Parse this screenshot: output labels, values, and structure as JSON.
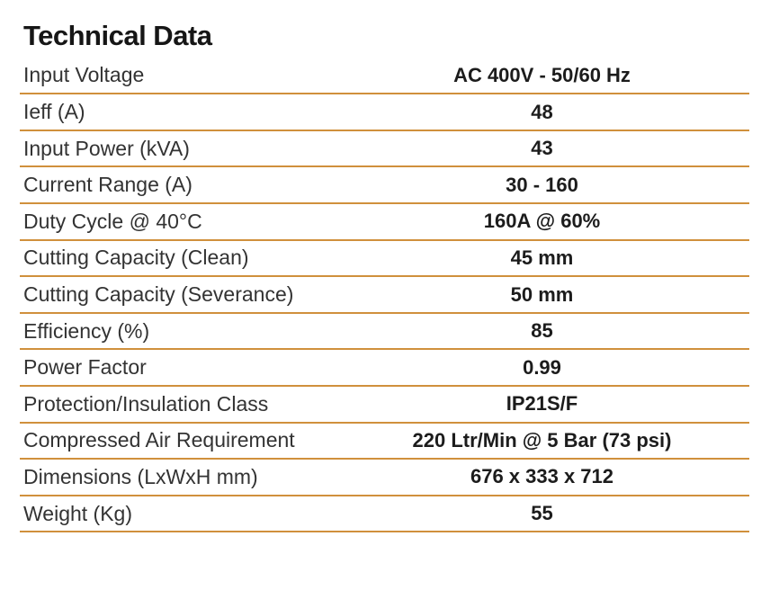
{
  "title": "Technical Data",
  "colors": {
    "divider": "#D0903C",
    "title_text": "#161616",
    "label_text": "#333333",
    "value_text": "#1C1C1C",
    "background": "#FFFFFF"
  },
  "table": {
    "rows": [
      {
        "label": "Input Voltage",
        "value": "AC 400V - 50/60 Hz"
      },
      {
        "label": "Ieff (A)",
        "value": "48"
      },
      {
        "label": "Input Power (kVA)",
        "value": "43"
      },
      {
        "label": "Current Range (A)",
        "value": "30 - 160"
      },
      {
        "label": "Duty Cycle @ 40°C",
        "value": "160A @ 60%"
      },
      {
        "label": "Cutting Capacity (Clean)",
        "value": "45 mm"
      },
      {
        "label": "Cutting Capacity (Severance)",
        "value": "50 mm"
      },
      {
        "label": "Efficiency (%)",
        "value": "85"
      },
      {
        "label": "Power Factor",
        "value": "0.99"
      },
      {
        "label": "Protection/Insulation Class",
        "value": "IP21S/F"
      },
      {
        "label": "Compressed Air Requirement",
        "value": "220 Ltr/Min @ 5 Bar (73 psi)"
      },
      {
        "label": "Dimensions (LxWxH mm)",
        "value": "676 x 333 x 712"
      },
      {
        "label": "Weight (Kg)",
        "value": "55"
      }
    ]
  }
}
